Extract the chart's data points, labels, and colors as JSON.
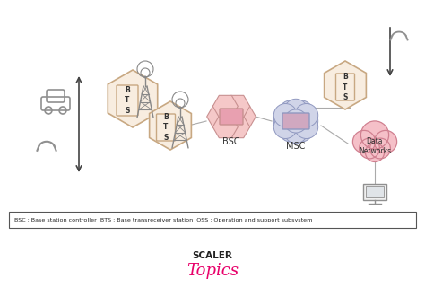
{
  "bg_color": "#ffffff",
  "legend_text": "BSC : Base station controller  BTS : Base transreceiver station  OSS : Operation and support subsystem",
  "scaler_text": "SCALER",
  "topics_text": "Topics",
  "bts_color": "#f8ede0",
  "bts_stroke": "#c8a882",
  "bsc_hex_color": "#f5c8c8",
  "bsc_hex_stroke": "#c89090",
  "msc_circle_color": "#d0d4e8",
  "msc_circle_stroke": "#9098c0",
  "msc_rect_color": "#e0b0c0",
  "cloud_color": "#f5c0c8",
  "cloud_stroke": "#d08090",
  "line_color": "#aaaaaa",
  "arrow_color": "#444444",
  "label_color": "#333333",
  "pink_color": "#e8006a",
  "tower_color": "#888888",
  "icon_color": "#909090"
}
